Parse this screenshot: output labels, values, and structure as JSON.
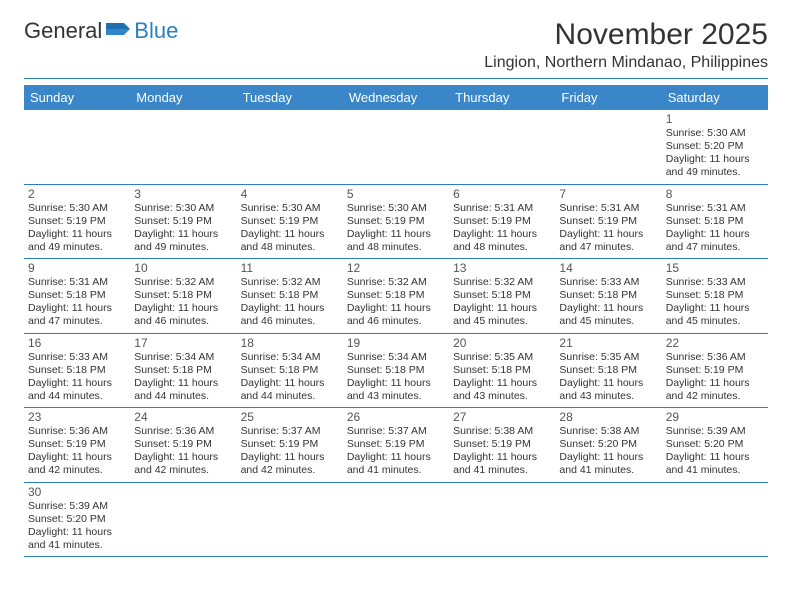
{
  "brand": {
    "part1": "General",
    "part2": "Blue"
  },
  "title": "November 2025",
  "location": "Lingion, Northern Mindanao, Philippines",
  "colors": {
    "header_bg": "#3a86c8",
    "rule": "#2b7fbf",
    "text": "#333333",
    "bg": "#ffffff"
  },
  "dayNames": [
    "Sunday",
    "Monday",
    "Tuesday",
    "Wednesday",
    "Thursday",
    "Friday",
    "Saturday"
  ],
  "labels": {
    "sunrise": "Sunrise:",
    "sunset": "Sunset:",
    "daylight": "Daylight:"
  },
  "weeks": [
    [
      null,
      null,
      null,
      null,
      null,
      null,
      {
        "n": "1",
        "sr": "5:30 AM",
        "ss": "5:20 PM",
        "dl": "11 hours and 49 minutes."
      }
    ],
    [
      {
        "n": "2",
        "sr": "5:30 AM",
        "ss": "5:19 PM",
        "dl": "11 hours and 49 minutes."
      },
      {
        "n": "3",
        "sr": "5:30 AM",
        "ss": "5:19 PM",
        "dl": "11 hours and 49 minutes."
      },
      {
        "n": "4",
        "sr": "5:30 AM",
        "ss": "5:19 PM",
        "dl": "11 hours and 48 minutes."
      },
      {
        "n": "5",
        "sr": "5:30 AM",
        "ss": "5:19 PM",
        "dl": "11 hours and 48 minutes."
      },
      {
        "n": "6",
        "sr": "5:31 AM",
        "ss": "5:19 PM",
        "dl": "11 hours and 48 minutes."
      },
      {
        "n": "7",
        "sr": "5:31 AM",
        "ss": "5:19 PM",
        "dl": "11 hours and 47 minutes."
      },
      {
        "n": "8",
        "sr": "5:31 AM",
        "ss": "5:18 PM",
        "dl": "11 hours and 47 minutes."
      }
    ],
    [
      {
        "n": "9",
        "sr": "5:31 AM",
        "ss": "5:18 PM",
        "dl": "11 hours and 47 minutes."
      },
      {
        "n": "10",
        "sr": "5:32 AM",
        "ss": "5:18 PM",
        "dl": "11 hours and 46 minutes."
      },
      {
        "n": "11",
        "sr": "5:32 AM",
        "ss": "5:18 PM",
        "dl": "11 hours and 46 minutes."
      },
      {
        "n": "12",
        "sr": "5:32 AM",
        "ss": "5:18 PM",
        "dl": "11 hours and 46 minutes."
      },
      {
        "n": "13",
        "sr": "5:32 AM",
        "ss": "5:18 PM",
        "dl": "11 hours and 45 minutes."
      },
      {
        "n": "14",
        "sr": "5:33 AM",
        "ss": "5:18 PM",
        "dl": "11 hours and 45 minutes."
      },
      {
        "n": "15",
        "sr": "5:33 AM",
        "ss": "5:18 PM",
        "dl": "11 hours and 45 minutes."
      }
    ],
    [
      {
        "n": "16",
        "sr": "5:33 AM",
        "ss": "5:18 PM",
        "dl": "11 hours and 44 minutes."
      },
      {
        "n": "17",
        "sr": "5:34 AM",
        "ss": "5:18 PM",
        "dl": "11 hours and 44 minutes."
      },
      {
        "n": "18",
        "sr": "5:34 AM",
        "ss": "5:18 PM",
        "dl": "11 hours and 44 minutes."
      },
      {
        "n": "19",
        "sr": "5:34 AM",
        "ss": "5:18 PM",
        "dl": "11 hours and 43 minutes."
      },
      {
        "n": "20",
        "sr": "5:35 AM",
        "ss": "5:18 PM",
        "dl": "11 hours and 43 minutes."
      },
      {
        "n": "21",
        "sr": "5:35 AM",
        "ss": "5:18 PM",
        "dl": "11 hours and 43 minutes."
      },
      {
        "n": "22",
        "sr": "5:36 AM",
        "ss": "5:19 PM",
        "dl": "11 hours and 42 minutes."
      }
    ],
    [
      {
        "n": "23",
        "sr": "5:36 AM",
        "ss": "5:19 PM",
        "dl": "11 hours and 42 minutes."
      },
      {
        "n": "24",
        "sr": "5:36 AM",
        "ss": "5:19 PM",
        "dl": "11 hours and 42 minutes."
      },
      {
        "n": "25",
        "sr": "5:37 AM",
        "ss": "5:19 PM",
        "dl": "11 hours and 42 minutes."
      },
      {
        "n": "26",
        "sr": "5:37 AM",
        "ss": "5:19 PM",
        "dl": "11 hours and 41 minutes."
      },
      {
        "n": "27",
        "sr": "5:38 AM",
        "ss": "5:19 PM",
        "dl": "11 hours and 41 minutes."
      },
      {
        "n": "28",
        "sr": "5:38 AM",
        "ss": "5:20 PM",
        "dl": "11 hours and 41 minutes."
      },
      {
        "n": "29",
        "sr": "5:39 AM",
        "ss": "5:20 PM",
        "dl": "11 hours and 41 minutes."
      }
    ],
    [
      {
        "n": "30",
        "sr": "5:39 AM",
        "ss": "5:20 PM",
        "dl": "11 hours and 41 minutes."
      },
      null,
      null,
      null,
      null,
      null,
      null
    ]
  ]
}
